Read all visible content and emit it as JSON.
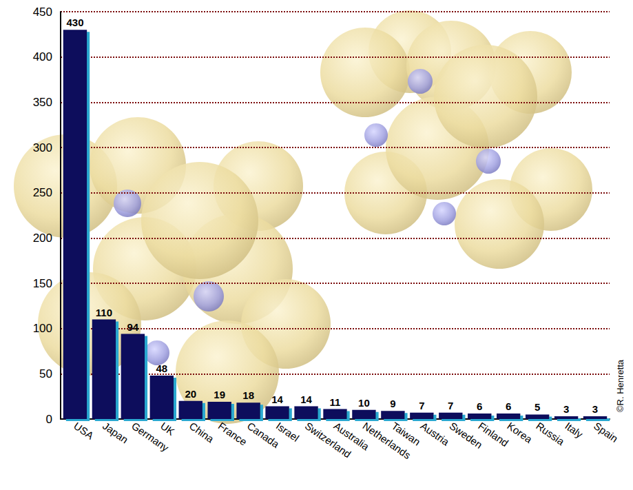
{
  "chart_data": {
    "type": "bar",
    "categories": [
      "USA",
      "Japan",
      "Germany",
      "UK",
      "China",
      "France",
      "Canada",
      "Israel",
      "Switzerland",
      "Australia",
      "Netherlands",
      "Taiwan",
      "Austria",
      "Sweden",
      "Finland",
      "Korea",
      "Russia",
      "Italy",
      "Spain"
    ],
    "values": [
      430,
      110,
      94,
      48,
      20,
      19,
      18,
      14,
      14,
      11,
      10,
      9,
      7,
      7,
      6,
      6,
      5,
      3,
      3
    ],
    "color": "#0b0b5c",
    "ylim": [
      0,
      450
    ],
    "yticks": [
      0,
      50,
      100,
      150,
      200,
      250,
      300,
      350,
      400,
      450
    ],
    "grid": true,
    "data_labels": true,
    "annotations": [
      "©R. Henretta"
    ]
  }
}
